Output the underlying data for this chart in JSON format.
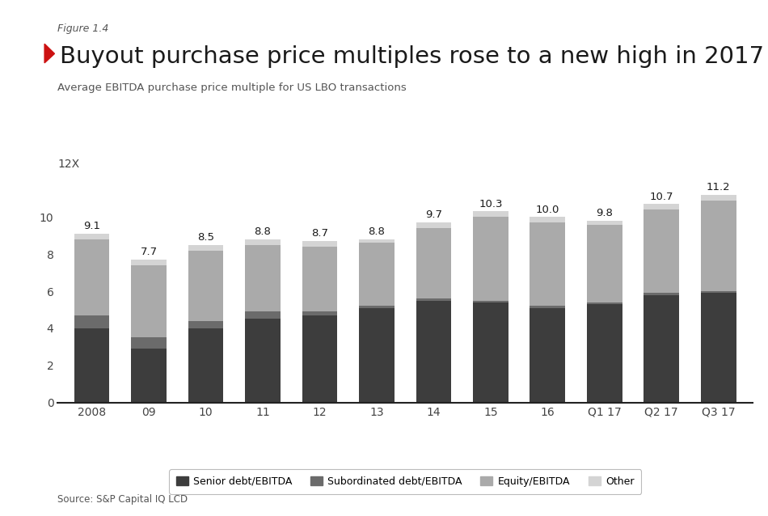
{
  "categories": [
    "2008",
    "09",
    "10",
    "11",
    "12",
    "13",
    "14",
    "15",
    "16",
    "Q1 17",
    "Q2 17",
    "Q3 17"
  ],
  "totals": [
    9.1,
    7.7,
    8.5,
    8.8,
    8.7,
    8.8,
    9.7,
    10.3,
    10.0,
    9.8,
    10.7,
    11.2
  ],
  "senior_debt": [
    4.0,
    2.9,
    4.0,
    4.5,
    4.7,
    5.1,
    5.5,
    5.4,
    5.1,
    5.3,
    5.8,
    5.9
  ],
  "sub_debt": [
    0.7,
    0.6,
    0.4,
    0.4,
    0.2,
    0.1,
    0.1,
    0.1,
    0.1,
    0.1,
    0.1,
    0.1
  ],
  "equity": [
    4.1,
    3.9,
    3.8,
    3.6,
    3.5,
    3.4,
    3.8,
    4.5,
    4.5,
    4.2,
    4.5,
    4.9
  ],
  "other": [
    0.3,
    0.3,
    0.3,
    0.3,
    0.3,
    0.2,
    0.3,
    0.3,
    0.3,
    0.2,
    0.3,
    0.3
  ],
  "colors": {
    "senior_debt": "#3d3d3d",
    "sub_debt": "#6b6b6b",
    "equity": "#aaaaaa",
    "other": "#d4d4d4"
  },
  "legend_labels": [
    "Senior debt/EBITDA",
    "Subordinated debt/EBITDA",
    "Equity/EBITDA",
    "Other"
  ],
  "figure_label": "Figure 1.4",
  "title": "Buyout purchase price multiples rose to a new high in 2017",
  "subtitle": "Average EBITDA purchase price multiple for US LBO transactions",
  "ylabel_label": "12X",
  "yticks": [
    0,
    2,
    4,
    6,
    8,
    10
  ],
  "source": "Source: S&P Capital IQ LCD",
  "title_color": "#1a1a1a",
  "background_color": "#ffffff",
  "title_fontsize": 21,
  "figure_label_fontsize": 9,
  "subtitle_fontsize": 9.5,
  "annotation_fontsize": 9.5,
  "tick_fontsize": 10,
  "legend_fontsize": 9,
  "source_fontsize": 8.5,
  "triangle_color": "#cc1111"
}
